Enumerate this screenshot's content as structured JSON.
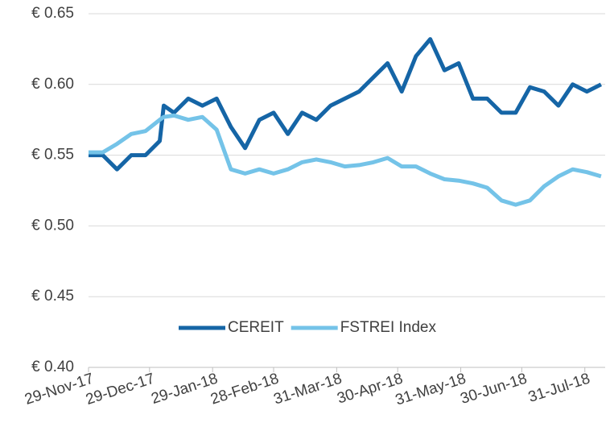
{
  "chart_data": {
    "type": "line",
    "x": [
      "2017-11-29",
      "2017-12-06",
      "2017-12-13",
      "2017-12-20",
      "2017-12-27",
      "2018-01-03",
      "2018-01-05",
      "2018-01-10",
      "2018-01-17",
      "2018-01-24",
      "2018-01-31",
      "2018-02-07",
      "2018-02-14",
      "2018-02-21",
      "2018-02-28",
      "2018-03-07",
      "2018-03-14",
      "2018-03-21",
      "2018-03-28",
      "2018-04-04",
      "2018-04-11",
      "2018-04-18",
      "2018-04-25",
      "2018-05-02",
      "2018-05-09",
      "2018-05-16",
      "2018-05-23",
      "2018-05-30",
      "2018-06-06",
      "2018-06-13",
      "2018-06-20",
      "2018-06-27",
      "2018-07-04",
      "2018-07-11",
      "2018-07-18",
      "2018-07-25",
      "2018-08-01",
      "2018-08-08"
    ],
    "series": [
      {
        "name": "CEREIT",
        "color": "#1565a6",
        "values": [
          0.55,
          0.55,
          0.54,
          0.55,
          0.55,
          0.56,
          0.585,
          0.58,
          0.59,
          0.585,
          0.59,
          0.57,
          0.555,
          0.575,
          0.58,
          0.565,
          0.58,
          0.575,
          0.585,
          0.59,
          0.595,
          0.605,
          0.615,
          0.595,
          0.62,
          0.632,
          0.61,
          0.615,
          0.59,
          0.59,
          0.58,
          0.58,
          0.598,
          0.595,
          0.585,
          0.6,
          0.595,
          0.6
        ]
      },
      {
        "name": "FSTREI Index",
        "color": "#74c3e8",
        "values": [
          0.552,
          0.552,
          0.558,
          0.565,
          0.567,
          0.575,
          0.577,
          0.578,
          0.575,
          0.577,
          0.568,
          0.54,
          0.537,
          0.54,
          0.537,
          0.54,
          0.545,
          0.547,
          0.545,
          0.542,
          0.543,
          0.545,
          0.548,
          0.542,
          0.542,
          0.537,
          0.533,
          0.532,
          0.53,
          0.527,
          0.518,
          0.515,
          0.518,
          0.528,
          0.535,
          0.54,
          0.538,
          0.535
        ]
      }
    ],
    "xlim": [
      "2017-11-29",
      "2018-08-10"
    ],
    "xticks": [
      {
        "value": "2017-11-29",
        "label": "29-Nov-17"
      },
      {
        "value": "2017-12-29",
        "label": "29-Dec-17"
      },
      {
        "value": "2018-01-29",
        "label": "29-Jan-18"
      },
      {
        "value": "2018-02-28",
        "label": "28-Feb-18"
      },
      {
        "value": "2018-03-31",
        "label": "31-Mar-18"
      },
      {
        "value": "2018-04-30",
        "label": "30-Apr-18"
      },
      {
        "value": "2018-05-31",
        "label": "31-May-18"
      },
      {
        "value": "2018-06-30",
        "label": "30-Jun-18"
      },
      {
        "value": "2018-07-31",
        "label": "31-Jul-18"
      }
    ],
    "ylim": [
      0.4,
      0.65
    ],
    "yticks": [
      {
        "value": 0.4,
        "label": "€ 0.40"
      },
      {
        "value": 0.45,
        "label": "€ 0.45"
      },
      {
        "value": 0.5,
        "label": "€ 0.50"
      },
      {
        "value": 0.55,
        "label": "€ 0.55"
      },
      {
        "value": 0.6,
        "label": "€ 0.60"
      },
      {
        "value": 0.65,
        "label": "€ 0.65"
      }
    ],
    "grid": true,
    "legend": "center"
  }
}
